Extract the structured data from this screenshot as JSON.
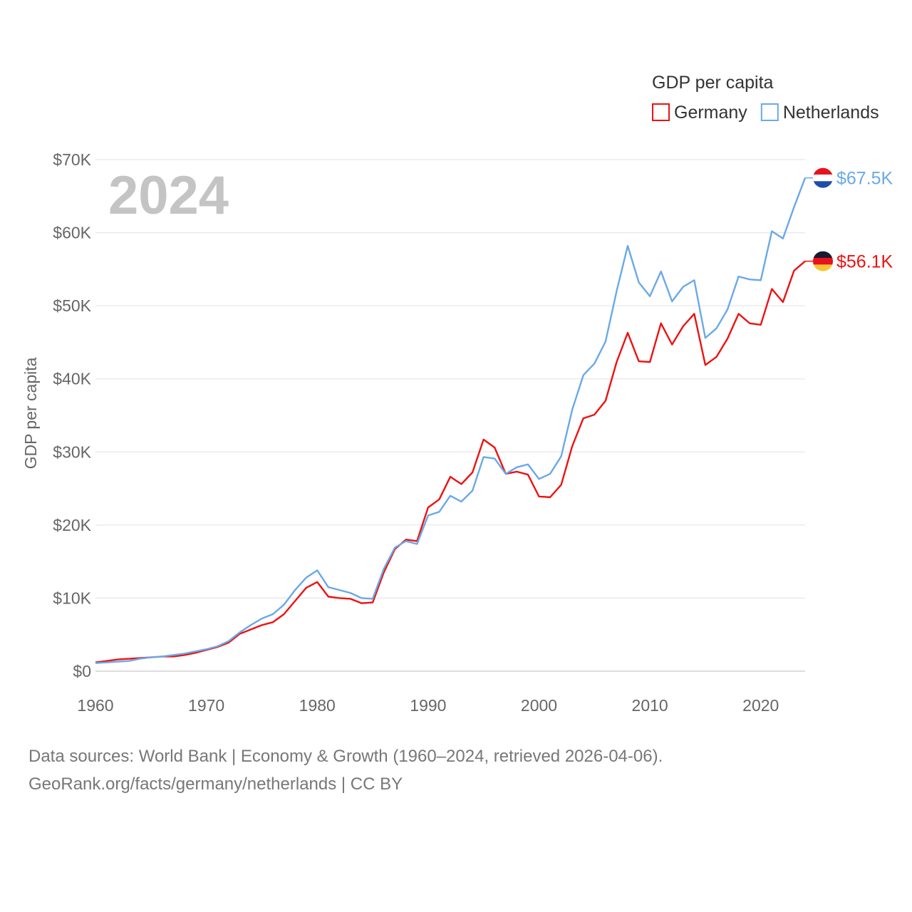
{
  "chart_data": {
    "type": "line",
    "title": "GDP per capita",
    "xlabel": "",
    "ylabel": "GDP per capita",
    "year_label": "2024",
    "xlim": [
      1960,
      2024
    ],
    "ylim": [
      0,
      70
    ],
    "x_ticks": [
      1960,
      1970,
      1980,
      1990,
      2000,
      2010,
      2020
    ],
    "x_tick_labels": [
      "1960",
      "1970",
      "1980",
      "1990",
      "2000",
      "2010",
      "2020"
    ],
    "y_ticks": [
      0,
      10,
      20,
      30,
      40,
      50,
      60,
      70
    ],
    "y_tick_labels": [
      "$0",
      "$10K",
      "$20K",
      "$30K",
      "$40K",
      "$50K",
      "$60K",
      "$70K"
    ],
    "grid": true,
    "legend_position": "top-right",
    "units": "thousand USD",
    "x_start": 1960,
    "series": [
      {
        "name": "Germany",
        "color": "#ee1111",
        "end_label": "$56.1K",
        "flag": [
          "#1a1a2e",
          "#e8121e",
          "#f6c533"
        ],
        "values": [
          1.2,
          1.4,
          1.6,
          1.7,
          1.8,
          1.9,
          2.0,
          2.0,
          2.2,
          2.5,
          2.9,
          3.3,
          3.9,
          5.1,
          5.7,
          6.3,
          6.7,
          7.8,
          9.6,
          11.4,
          12.2,
          10.2,
          10.0,
          9.9,
          9.3,
          9.4,
          13.5,
          16.7,
          18.0,
          17.8,
          22.4,
          23.5,
          26.6,
          25.6,
          27.2,
          31.7,
          30.6,
          27.0,
          27.3,
          26.9,
          23.9,
          23.8,
          25.5,
          30.8,
          34.6,
          35.1,
          37.0,
          42.3,
          46.3,
          42.4,
          42.3,
          47.6,
          44.7,
          47.2,
          48.9,
          41.9,
          43.0,
          45.5,
          48.9,
          47.6,
          47.4,
          52.3,
          50.5,
          54.8,
          56.1
        ]
      },
      {
        "name": "Netherlands",
        "color": "#6aa9e8",
        "end_label": "$67.5K",
        "flag": [
          "#e8121e",
          "#ffffff",
          "#1f4ea8"
        ],
        "values": [
          1.1,
          1.2,
          1.3,
          1.4,
          1.7,
          1.9,
          2.0,
          2.2,
          2.4,
          2.7,
          3.0,
          3.4,
          4.1,
          5.3,
          6.3,
          7.2,
          7.8,
          9.1,
          11.1,
          12.8,
          13.8,
          11.5,
          11.1,
          10.7,
          10.0,
          9.9,
          14.0,
          16.9,
          17.8,
          17.4,
          21.3,
          21.8,
          24.0,
          23.2,
          24.7,
          29.3,
          29.1,
          27.0,
          27.9,
          28.3,
          26.3,
          27.0,
          29.4,
          35.8,
          40.5,
          42.1,
          45.1,
          52.0,
          58.2,
          53.2,
          51.3,
          54.7,
          50.6,
          52.6,
          53.5,
          45.6,
          46.9,
          49.5,
          54.0,
          53.6,
          53.5,
          60.2,
          59.2,
          63.5,
          67.5
        ]
      }
    ]
  },
  "footer": {
    "line1": "Data sources: World Bank | Economy & Growth (1960–2024, retrieved 2026-04-06).",
    "line2": "GeoRank.org/facts/germany/netherlands | CC BY"
  }
}
